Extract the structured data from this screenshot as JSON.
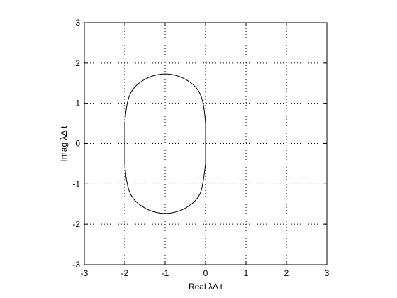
{
  "chart_data": {
    "type": "line",
    "title": "",
    "xlabel": "Real λΔ t",
    "ylabel": "Imag λΔ t",
    "xlim": [
      -3,
      3
    ],
    "ylim": [
      -3,
      3
    ],
    "xticks": [
      -3,
      -2,
      -1,
      0,
      1,
      2,
      3
    ],
    "yticks": [
      -3,
      -2,
      -1,
      0,
      1,
      2,
      3
    ],
    "xtick_labels": [
      "-3",
      "-2",
      "-1",
      "0",
      "1",
      "2",
      "3"
    ],
    "ytick_labels": [
      "-3",
      "-2",
      "-1",
      "0",
      "1",
      "2",
      "3"
    ],
    "grid": true,
    "grid_style": "dotted",
    "line_color": "#000000",
    "series": [
      {
        "x": [
          0.0,
          0.0,
          -0.134,
          -0.5,
          -1.0,
          -1.5,
          -1.866,
          -2.0,
          -2.0,
          -1.866,
          -1.5,
          -1.0,
          -0.5,
          -0.134,
          0.0
        ],
        "y": [
          -0.5,
          0.5,
          1.232,
          1.598,
          1.732,
          1.598,
          1.232,
          0.5,
          -0.5,
          -1.232,
          -1.598,
          -1.732,
          -1.598,
          -1.232,
          -0.5
        ]
      }
    ]
  }
}
